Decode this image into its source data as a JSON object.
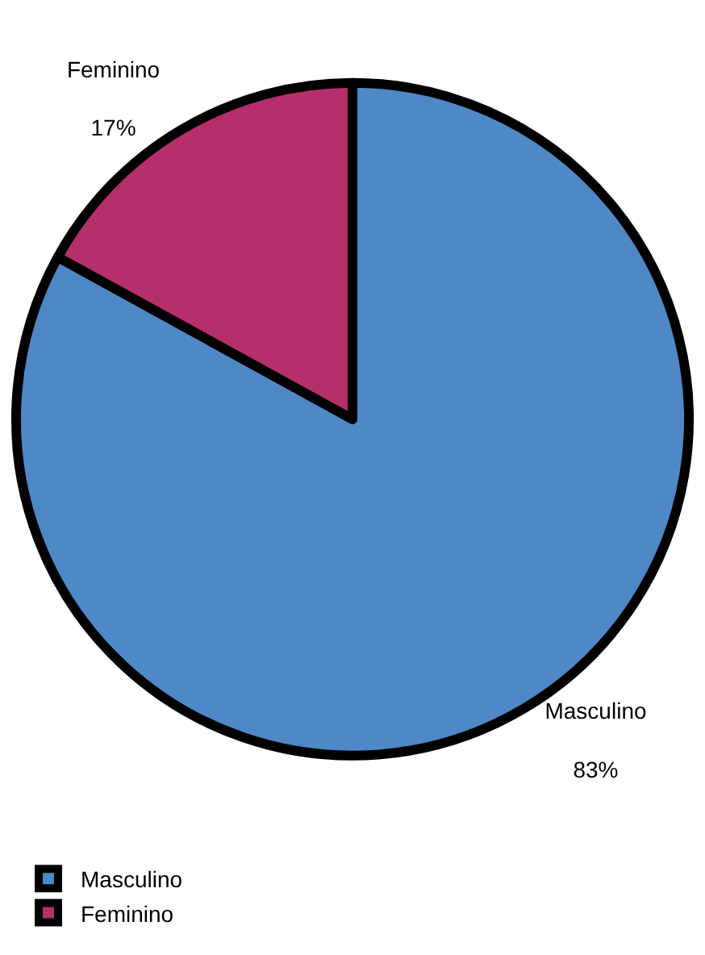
{
  "chart_data": {
    "type": "pie",
    "categories": [
      "Masculino",
      "Feminino"
    ],
    "values": [
      83,
      17
    ],
    "value_labels": [
      "83%",
      "17%"
    ],
    "colors": [
      "#4f88c6",
      "#b52f6b"
    ],
    "legend": "bottom left"
  }
}
